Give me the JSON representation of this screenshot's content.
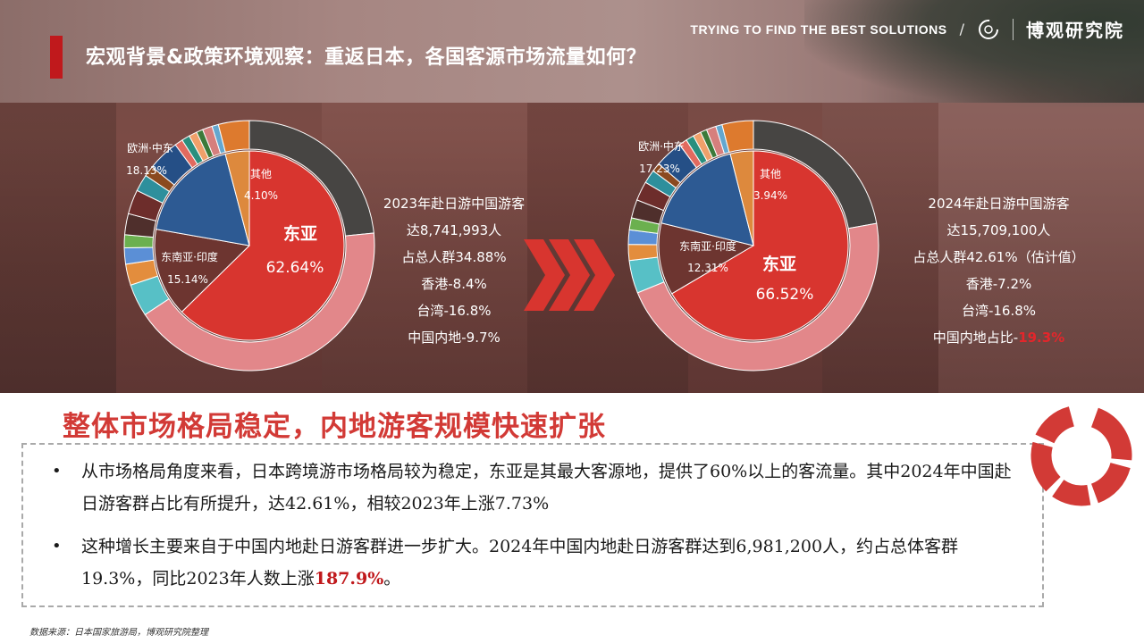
{
  "header": {
    "title": "宏观背景&政策环境观察：重返日本，各国客源市场流量如何？",
    "tagline": "TRYING TO FIND THE BEST SOLUTIONS",
    "separator": "/",
    "brand": "博观研究院"
  },
  "chart_data": [
    {
      "type": "pie",
      "year": "2023",
      "inner_values": [
        {
          "label": "东亚",
          "value": 62.64
        },
        {
          "label": "东南亚·印度",
          "value": 15.14
        },
        {
          "label": "欧洲·中东",
          "value": 18.13
        },
        {
          "label": "其他",
          "value": 4.1
        }
      ],
      "outer_values": [
        22.3,
        40.3,
        4.0,
        2.6,
        2.0,
        1.6,
        2.6,
        3.0,
        2.1,
        1.3,
        3.9,
        1.0,
        1.0,
        1.0,
        0.8,
        1.2,
        0.8,
        3.8
      ],
      "inner_labels": {
        "dongya": "东亚",
        "dongya_pct": "62.64%",
        "sea": "东南亚·印度",
        "sea_pct": "15.14%",
        "eu": "欧洲·中东",
        "eu_pct": "18.13%",
        "other": "其他",
        "other_pct": "4.10%"
      }
    },
    {
      "type": "pie",
      "year": "2024",
      "inner_values": [
        {
          "label": "东亚",
          "value": 66.52
        },
        {
          "label": "东南亚·印度",
          "value": 12.31
        },
        {
          "label": "欧洲·中东",
          "value": 17.23
        },
        {
          "label": "其他",
          "value": 3.94
        }
      ],
      "outer_values": [
        21.4,
        45.1,
        4.1,
        2.0,
        1.8,
        1.5,
        2.3,
        2.4,
        1.7,
        1.1,
        3.5,
        1.0,
        1.0,
        1.0,
        0.8,
        1.2,
        0.8,
        3.9
      ],
      "inner_labels": {
        "dongya": "东亚",
        "dongya_pct": "66.52%",
        "sea": "东南亚·印度",
        "sea_pct": "12.31%",
        "eu": "欧洲·中东",
        "eu_pct": "17.23%",
        "other": "其他",
        "other_pct": "3.94%"
      }
    }
  ],
  "colors": {
    "dongya": "#d8352f",
    "sea": "#6d3530",
    "eu": "#2d5a93",
    "other": "#dd893d",
    "outer": [
      "#474543",
      "#e2878a",
      "#57c0c6",
      "#e38d3d",
      "#5b8fd6",
      "#6bb04f",
      "#4f2f2c",
      "#6d2d2b",
      "#2e8f9c",
      "#8b4a1f",
      "#254f86",
      "#e16a5f",
      "#2a8f7e",
      "#f0a06a",
      "#3d7a3a",
      "#d67f7d",
      "#64a7cf",
      "#dd7a2e"
    ],
    "accent": "#c0191c"
  },
  "info_2023": {
    "line1": "2023年赴日游中国游客",
    "line2": "达8,741,993人",
    "line3": "占总人群34.88%",
    "line4": "香港-8.4%",
    "line5": "台湾-16.8%",
    "line6": "中国内地-9.7%"
  },
  "info_2024": {
    "line1": "2024年赴日游中国游客",
    "line2": "达15,709,100人",
    "line3": "占总人群42.61%（估计值）",
    "line4": "香港-7.2%",
    "line5": "台湾-16.8%",
    "line6_prefix": "中国内地占比-",
    "line6_value": "19.3%"
  },
  "headline": "整体市场格局稳定，内地游客规模快速扩张",
  "bullets": {
    "b1": "从市场格局角度来看，日本跨境游市场格局较为稳定，东亚是其最大客源地，提供了60%以上的客流量。其中2024年中国赴日游客群占比有所提升，达42.61%，相较2023年上涨7.73%",
    "b2_prefix": "这种增长主要来自于中国内地赴日游客群进一步扩大。2024年中国内地赴日游客群达到6,981,200人，约占总体客群19.3%，同比2023年人数上涨",
    "b2_highlight": "187.9%",
    "b2_suffix": "。",
    "marker": "•"
  },
  "source": "数据来源：日本国家旅游局，博观研究院整理"
}
